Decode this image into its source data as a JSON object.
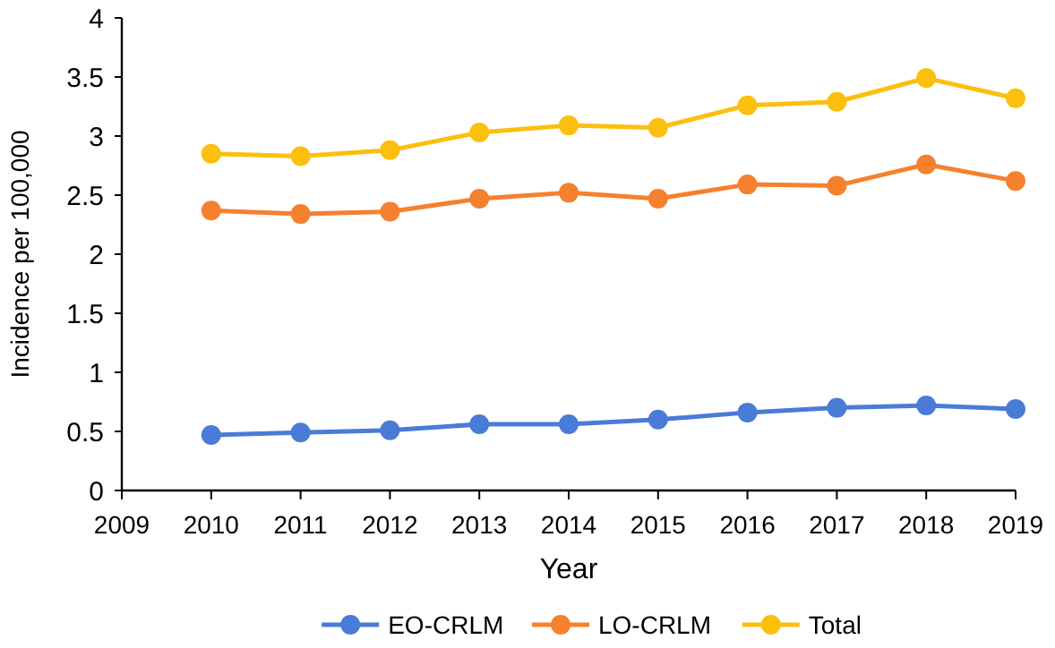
{
  "chart_data": {
    "type": "line",
    "xlabel": "Year",
    "ylabel": "Incidence per 100,000",
    "x": [
      2010,
      2011,
      2012,
      2013,
      2014,
      2015,
      2016,
      2017,
      2018,
      2019
    ],
    "series": [
      {
        "name": "EO-CRLM",
        "color": "#4a7bd6",
        "values": [
          0.47,
          0.49,
          0.51,
          0.56,
          0.56,
          0.6,
          0.66,
          0.7,
          0.72,
          0.69
        ]
      },
      {
        "name": "LO-CRLM",
        "color": "#f5812f",
        "values": [
          2.37,
          2.34,
          2.36,
          2.47,
          2.52,
          2.47,
          2.59,
          2.58,
          2.76,
          2.62
        ]
      },
      {
        "name": "Total",
        "color": "#fbbf0e",
        "values": [
          2.85,
          2.83,
          2.88,
          3.03,
          3.09,
          3.07,
          3.26,
          3.29,
          3.49,
          3.32
        ]
      }
    ],
    "xlim": [
      2009,
      2019
    ],
    "xticks": [
      2009,
      2010,
      2011,
      2012,
      2013,
      2014,
      2015,
      2016,
      2017,
      2018,
      2019
    ],
    "ylim": [
      0,
      4
    ],
    "yticks": [
      0,
      0.5,
      1,
      1.5,
      2,
      2.5,
      3,
      3.5,
      4
    ],
    "grid": false,
    "legend": "bottom",
    "marker": "circle",
    "line_style": "solid"
  }
}
